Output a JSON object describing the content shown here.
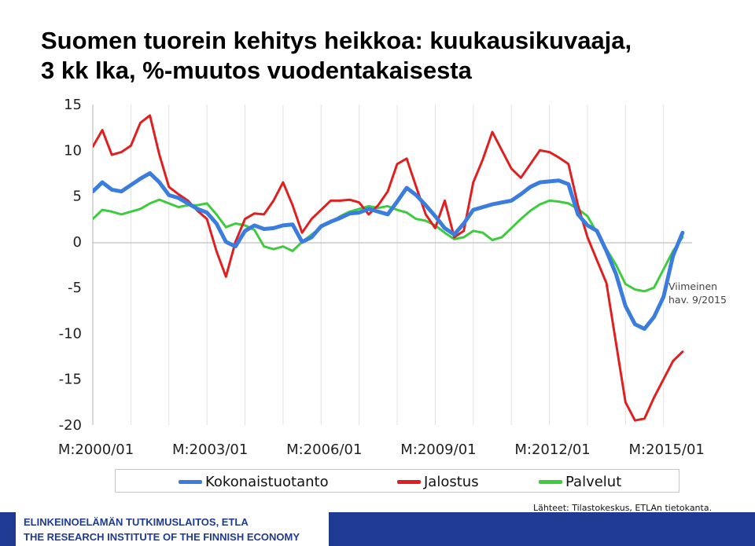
{
  "chart_data": {
    "type": "line",
    "title_lines": [
      "Suomen tuorein kehitys heikkoa: kuukausikuvaaja,",
      "3 kk lka, %-muutos vuodentakaisesta"
    ],
    "y_ticks": [
      "15",
      "10",
      "5",
      "0",
      "-5",
      "-10",
      "-15",
      "-20"
    ],
    "ylim": [
      -20,
      15
    ],
    "x_ticks": [
      "M:2000/01",
      "M:2003/01",
      "M:2006/01",
      "M:2009/01",
      "M:2012/01",
      "M:2015/01"
    ],
    "x_range": [
      "2000/01",
      "2015/09"
    ],
    "grid": "vertical lines only",
    "legend": "bottom",
    "annotation": [
      "Viimeinen",
      "hav. 9/2015"
    ],
    "series": [
      {
        "name": "Kokonaistuotanto",
        "color": "#3b7dde",
        "points": [
          [
            2000.0,
            5.5
          ],
          [
            2000.25,
            6.5
          ],
          [
            2000.5,
            5.7
          ],
          [
            2000.75,
            5.5
          ],
          [
            2001.0,
            6.2
          ],
          [
            2001.25,
            6.9
          ],
          [
            2001.5,
            7.5
          ],
          [
            2001.75,
            6.5
          ],
          [
            2002.0,
            5.1
          ],
          [
            2002.25,
            4.8
          ],
          [
            2002.5,
            4.2
          ],
          [
            2002.75,
            3.6
          ],
          [
            2003.0,
            3.2
          ],
          [
            2003.25,
            2.0
          ],
          [
            2003.5,
            0.0
          ],
          [
            2003.75,
            -0.5
          ],
          [
            2004.0,
            1.2
          ],
          [
            2004.25,
            1.8
          ],
          [
            2004.5,
            1.4
          ],
          [
            2004.75,
            1.5
          ],
          [
            2005.0,
            1.8
          ],
          [
            2005.25,
            1.9
          ],
          [
            2005.5,
            0.0
          ],
          [
            2005.75,
            0.5
          ],
          [
            2006.0,
            1.7
          ],
          [
            2006.25,
            2.2
          ],
          [
            2006.5,
            2.6
          ],
          [
            2006.75,
            3.1
          ],
          [
            2007.0,
            3.2
          ],
          [
            2007.25,
            3.6
          ],
          [
            2007.5,
            3.3
          ],
          [
            2007.75,
            3.0
          ],
          [
            2008.0,
            4.4
          ],
          [
            2008.25,
            5.9
          ],
          [
            2008.5,
            5.1
          ],
          [
            2008.75,
            4.0
          ],
          [
            2009.0,
            2.8
          ],
          [
            2009.25,
            1.5
          ],
          [
            2009.5,
            0.8
          ],
          [
            2009.75,
            2.0
          ],
          [
            2010.0,
            3.5
          ],
          [
            2010.25,
            3.8
          ],
          [
            2010.5,
            4.1
          ],
          [
            2010.75,
            4.3
          ],
          [
            2011.0,
            4.5
          ],
          [
            2011.25,
            5.2
          ],
          [
            2011.5,
            6.0
          ],
          [
            2011.75,
            6.5
          ],
          [
            2012.0,
            6.6
          ],
          [
            2012.25,
            6.7
          ],
          [
            2012.5,
            6.3
          ],
          [
            2012.75,
            3.0
          ],
          [
            2013.0,
            1.8
          ],
          [
            2013.25,
            1.2
          ],
          [
            2013.5,
            -1.0
          ],
          [
            2013.75,
            -3.5
          ],
          [
            2014.0,
            -7.0
          ],
          [
            2014.25,
            -9.0
          ],
          [
            2014.5,
            -9.5
          ],
          [
            2014.75,
            -8.2
          ],
          [
            2015.0,
            -6.0
          ],
          [
            2015.25,
            -1.5
          ],
          [
            2015.5,
            1.0
          ]
        ]
      },
      {
        "name": "Jalostus",
        "color": "#e02020",
        "points": [
          [
            2000.0,
            10.4
          ],
          [
            2000.25,
            12.2
          ],
          [
            2000.5,
            9.5
          ],
          [
            2000.75,
            9.8
          ],
          [
            2001.0,
            10.5
          ],
          [
            2001.25,
            13.0
          ],
          [
            2001.5,
            13.8
          ],
          [
            2001.75,
            9.5
          ],
          [
            2002.0,
            6.0
          ],
          [
            2002.25,
            5.2
          ],
          [
            2002.5,
            4.5
          ],
          [
            2002.75,
            3.4
          ],
          [
            2003.0,
            2.5
          ],
          [
            2003.25,
            -1.0
          ],
          [
            2003.5,
            -3.8
          ],
          [
            2003.75,
            0.0
          ],
          [
            2004.0,
            2.5
          ],
          [
            2004.25,
            3.1
          ],
          [
            2004.5,
            3.0
          ],
          [
            2004.75,
            4.5
          ],
          [
            2005.0,
            6.5
          ],
          [
            2005.25,
            4.0
          ],
          [
            2005.5,
            1.0
          ],
          [
            2005.75,
            2.5
          ],
          [
            2006.0,
            3.5
          ],
          [
            2006.25,
            4.5
          ],
          [
            2006.5,
            4.5
          ],
          [
            2006.75,
            4.6
          ],
          [
            2007.0,
            4.3
          ],
          [
            2007.25,
            3.0
          ],
          [
            2007.5,
            4.0
          ],
          [
            2007.75,
            5.5
          ],
          [
            2008.0,
            8.5
          ],
          [
            2008.25,
            9.1
          ],
          [
            2008.5,
            6.0
          ],
          [
            2008.75,
            3.0
          ],
          [
            2009.0,
            1.5
          ],
          [
            2009.25,
            4.5
          ],
          [
            2009.5,
            0.5
          ],
          [
            2009.75,
            1.2
          ],
          [
            2010.0,
            6.5
          ],
          [
            2010.25,
            9.0
          ],
          [
            2010.5,
            12.0
          ],
          [
            2010.75,
            10.0
          ],
          [
            2011.0,
            8.0
          ],
          [
            2011.25,
            7.0
          ],
          [
            2011.5,
            8.5
          ],
          [
            2011.75,
            10.0
          ],
          [
            2012.0,
            9.8
          ],
          [
            2012.25,
            9.2
          ],
          [
            2012.5,
            8.5
          ],
          [
            2012.75,
            4.0
          ],
          [
            2013.0,
            0.5
          ],
          [
            2013.25,
            -2.0
          ],
          [
            2013.5,
            -4.5
          ],
          [
            2013.75,
            -11.0
          ],
          [
            2014.0,
            -17.5
          ],
          [
            2014.25,
            -19.5
          ],
          [
            2014.5,
            -19.3
          ],
          [
            2014.75,
            -17.0
          ],
          [
            2015.0,
            -15.0
          ],
          [
            2015.25,
            -13.0
          ],
          [
            2015.5,
            -12.0
          ]
        ]
      },
      {
        "name": "Palvelut",
        "color": "#3ecc3e",
        "points": [
          [
            2000.0,
            2.5
          ],
          [
            2000.25,
            3.5
          ],
          [
            2000.5,
            3.3
          ],
          [
            2000.75,
            3.0
          ],
          [
            2001.0,
            3.3
          ],
          [
            2001.25,
            3.6
          ],
          [
            2001.5,
            4.2
          ],
          [
            2001.75,
            4.6
          ],
          [
            2002.0,
            4.2
          ],
          [
            2002.25,
            3.8
          ],
          [
            2002.5,
            4.0
          ],
          [
            2002.75,
            4.0
          ],
          [
            2003.0,
            4.2
          ],
          [
            2003.25,
            3.0
          ],
          [
            2003.5,
            1.6
          ],
          [
            2003.75,
            2.0
          ],
          [
            2004.0,
            1.8
          ],
          [
            2004.25,
            1.3
          ],
          [
            2004.5,
            -0.5
          ],
          [
            2004.75,
            -0.8
          ],
          [
            2005.0,
            -0.5
          ],
          [
            2005.25,
            -1.0
          ],
          [
            2005.5,
            0.0
          ],
          [
            2005.75,
            0.8
          ],
          [
            2006.0,
            1.6
          ],
          [
            2006.25,
            2.1
          ],
          [
            2006.5,
            2.8
          ],
          [
            2006.75,
            3.3
          ],
          [
            2007.0,
            3.6
          ],
          [
            2007.25,
            3.9
          ],
          [
            2007.5,
            3.7
          ],
          [
            2007.75,
            3.9
          ],
          [
            2008.0,
            3.5
          ],
          [
            2008.25,
            3.2
          ],
          [
            2008.5,
            2.5
          ],
          [
            2008.75,
            2.3
          ],
          [
            2009.0,
            1.8
          ],
          [
            2009.25,
            1.0
          ],
          [
            2009.5,
            0.3
          ],
          [
            2009.75,
            0.5
          ],
          [
            2010.0,
            1.2
          ],
          [
            2010.25,
            1.0
          ],
          [
            2010.5,
            0.2
          ],
          [
            2010.75,
            0.5
          ],
          [
            2011.0,
            1.5
          ],
          [
            2011.25,
            2.5
          ],
          [
            2011.5,
            3.4
          ],
          [
            2011.75,
            4.1
          ],
          [
            2012.0,
            4.5
          ],
          [
            2012.25,
            4.4
          ],
          [
            2012.5,
            4.2
          ],
          [
            2012.75,
            3.6
          ],
          [
            2013.0,
            2.8
          ],
          [
            2013.25,
            1.0
          ],
          [
            2013.5,
            -0.8
          ],
          [
            2013.75,
            -2.5
          ],
          [
            2014.0,
            -4.6
          ],
          [
            2014.25,
            -5.2
          ],
          [
            2014.5,
            -5.4
          ],
          [
            2014.75,
            -5.0
          ],
          [
            2015.0,
            -3.0
          ],
          [
            2015.25,
            -1.0
          ],
          [
            2015.5,
            0.5
          ]
        ]
      }
    ]
  },
  "footer": {
    "org_fi": "ELINKEINOELÄMÄN TUTKIMUSLAITOS, ETLA",
    "org_en": "THE RESEARCH INSTITUTE OF THE FINNISH ECONOMY",
    "source": "Lähteet: Tilastokeskus, ETLAn tietokanta."
  },
  "colors": {
    "footer_blue": "#1f3a93"
  }
}
